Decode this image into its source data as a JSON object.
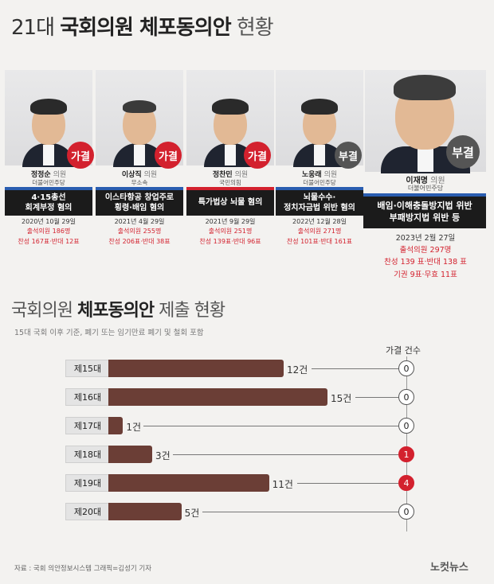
{
  "title": {
    "prefix": "21대",
    "bold": "국회의원 체포동의안",
    "suffix": "현황"
  },
  "cases": [
    {
      "name": "정정순",
      "role": "의원",
      "party": "더불어민주당",
      "result": "가결",
      "charge_line1": "4·15총선",
      "charge_line2": "회계부정 혐의",
      "date": "2020년 10월 29일",
      "attend": "출석의원 186명",
      "votes": "찬성 167표·반대 12표"
    },
    {
      "name": "이상직",
      "role": "의원",
      "party": "무소속",
      "result": "가결",
      "charge_line1": "이스타항공 창업주로",
      "charge_line2": "횡령·배임 혐의",
      "date": "2021년 4월 29일",
      "attend": "출석의원 255명",
      "votes": "찬성 206표·반대 38표"
    },
    {
      "name": "정찬민",
      "role": "의원",
      "party": "국민의힘",
      "result": "가결",
      "charge_line1": "특가법상 뇌물 혐의",
      "charge_line2": "",
      "date": "2021년 9월 29일",
      "attend": "출석의원 251명",
      "votes": "찬성 139표·반대 96표"
    },
    {
      "name": "노웅래",
      "role": "의원",
      "party": "더불어민주당",
      "result": "부결",
      "charge_line1": "뇌물수수·",
      "charge_line2": "정치자금법 위반 혐의",
      "date": "2022년 12월 28일",
      "attend": "출석의원 271명",
      "votes": "찬성 101표·반대 161표"
    },
    {
      "name": "이재명",
      "role": "의원",
      "party": "더불어민주당",
      "result": "부결",
      "charge_line1": "배임·이해충돌방지법 위반",
      "charge_line2": "부패방지법 위반 등",
      "date": "2023년 2월 27일",
      "attend": "출석의원 297명",
      "votes": "찬성 139 표·반대 138 표",
      "votes2": "기권 9표·무효 11표"
    }
  ],
  "chart_section": {
    "title_bold_1": "국회의원",
    "title_bold_2": "체포동의안",
    "title_rest": "제출 현황",
    "subtitle": "15대 국회 이후 기준, 폐기 또는 임기만료 폐기 및 철회 포함",
    "passed_header": "가결 건수"
  },
  "chart_data": {
    "type": "bar",
    "orientation": "horizontal",
    "categories": [
      "제15대",
      "제16대",
      "제17대",
      "제18대",
      "제19대",
      "제20대"
    ],
    "series": [
      {
        "values": [
          12,
          15,
          1,
          3,
          11,
          5
        ]
      }
    ],
    "value_labels": [
      "12건",
      "15건",
      "1건",
      "3건",
      "11건",
      "5건"
    ],
    "passed_counts": [
      0,
      0,
      0,
      1,
      4,
      0
    ],
    "colors": {
      "bar": "#6b3e36",
      "highlight": "#d3212e"
    }
  },
  "footer": {
    "source": "자료 : 국회 의안정보시스템     그래픽=김성기 기자",
    "logo": "노컷뉴스"
  }
}
